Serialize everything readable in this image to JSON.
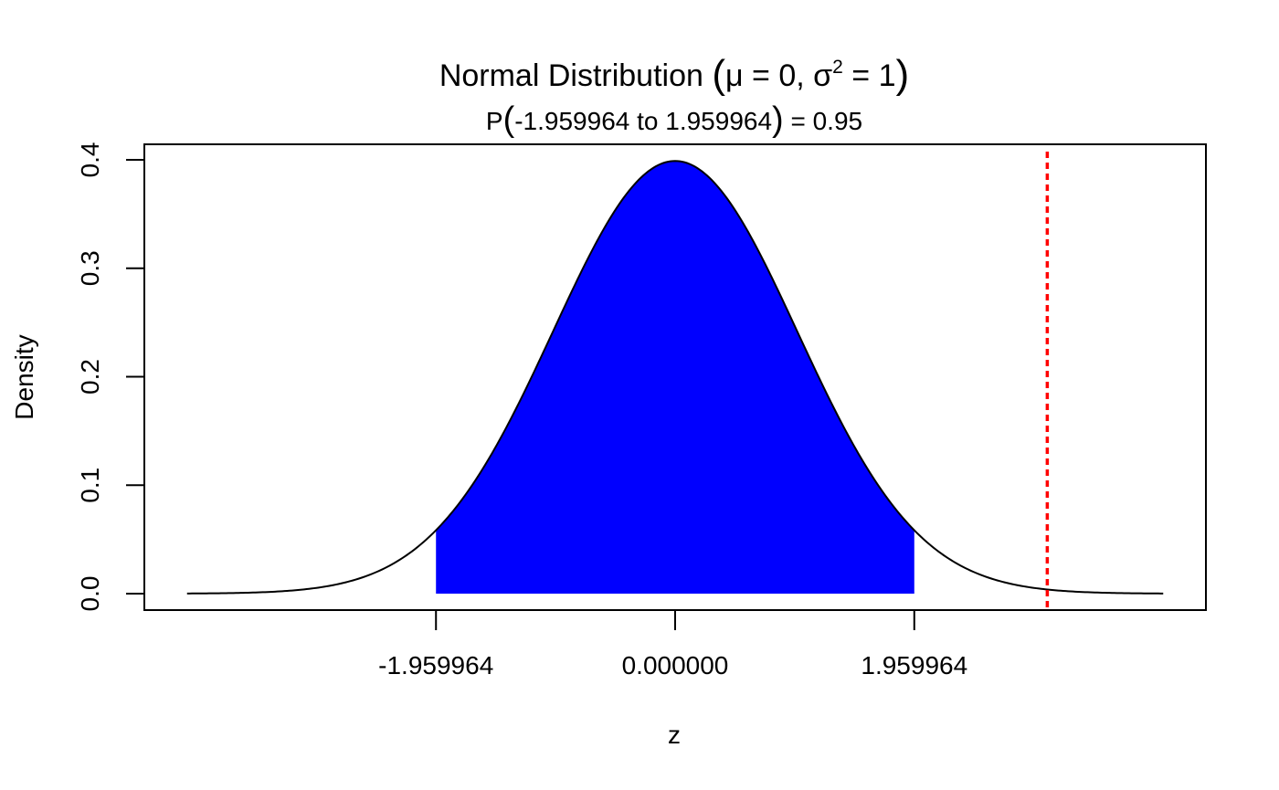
{
  "chart_data": {
    "type": "area",
    "title": {
      "prefix": "Normal Distribution ",
      "mu_text": "μ = 0, σ",
      "sup": "2",
      "after_sup": " = 1"
    },
    "subtitle": {
      "prefix": "P",
      "inner": "-1.959964 to 1.959964",
      "suffix": " = 0.95"
    },
    "xlabel": "z",
    "ylabel": "Density",
    "mean": 0,
    "variance": 1,
    "x_range": [
      -4,
      4
    ],
    "xlim": [
      -4.35,
      4.35
    ],
    "ylim": [
      0,
      0.4
    ],
    "shade_from": -1.959964,
    "shade_to": 1.959964,
    "probability": 0.95,
    "reference_line_x": 3.05,
    "x_ticks": [
      -1.959964,
      0,
      1.959964
    ],
    "x_tick_labels": [
      "-1.959964",
      "0.000000",
      "1.959964"
    ],
    "y_ticks": [
      0.0,
      0.1,
      0.2,
      0.3,
      0.4
    ],
    "y_tick_labels": [
      "0.0",
      "0.1",
      "0.2",
      "0.3",
      "0.4"
    ],
    "grid": false,
    "legend": "none",
    "colors": {
      "shade": "#0000ff",
      "curve": "#000000",
      "reference_line": "#ff0000"
    }
  }
}
